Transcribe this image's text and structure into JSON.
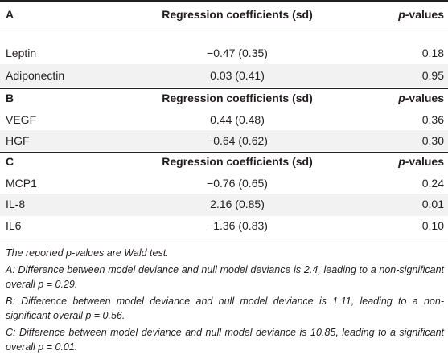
{
  "sections": [
    {
      "label": "A",
      "coef_header": "Regression coefficients (sd)",
      "p_header_italic": "p",
      "p_header_rest": "-values",
      "rows": [
        {
          "name": "Leptin",
          "coef": "−0.47 (0.35)",
          "p": "0.18"
        },
        {
          "name": "Adiponectin",
          "coef": "0.03 (0.41)",
          "p": "0.95"
        }
      ]
    },
    {
      "label": "B",
      "coef_header": "Regression coefficients (sd)",
      "p_header_italic": "p",
      "p_header_rest": "-values",
      "rows": [
        {
          "name": "VEGF",
          "coef": "0.44 (0.48)",
          "p": "0.36"
        },
        {
          "name": "HGF",
          "coef": "−0.64 (0.62)",
          "p": "0.30"
        }
      ]
    },
    {
      "label": "C",
      "coef_header": "Regression coefficients (sd)",
      "p_header_italic": "p",
      "p_header_rest": "-values",
      "rows": [
        {
          "name": "MCP1",
          "coef": "−0.76 (0.65)",
          "p": "0.24"
        },
        {
          "name": "IL-8",
          "coef": "2.16 (0.85)",
          "p": "0.01"
        },
        {
          "name": "IL6",
          "coef": "−1.36 (0.83)",
          "p": "0.10"
        }
      ]
    }
  ],
  "footnotes": [
    "The reported p-values are Wald test.",
    "A: Difference between model deviance and null model deviance is 2.4, leading to a non-significant overall p = 0.29.",
    "B: Difference between model deviance and null model deviance is 1.11, leading to a non-significant overall p = 0.56.",
    "C: Difference between model deviance and null model deviance is 10.85, leading to a significant overall p = 0.01."
  ]
}
